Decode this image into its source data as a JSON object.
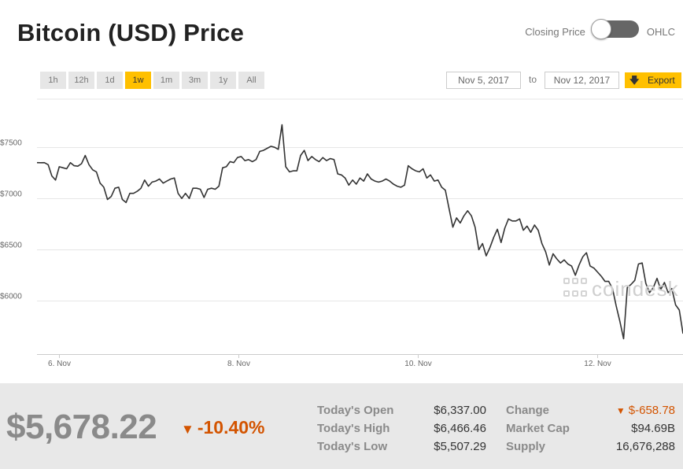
{
  "header": {
    "title": "Bitcoin (USD) Price"
  },
  "toggle": {
    "left_label": "Closing Price",
    "right_label": "OHLC"
  },
  "ranges": [
    {
      "label": "1h",
      "active": false
    },
    {
      "label": "12h",
      "active": false
    },
    {
      "label": "1d",
      "active": false
    },
    {
      "label": "1w",
      "active": true
    },
    {
      "label": "1m",
      "active": false
    },
    {
      "label": "3m",
      "active": false
    },
    {
      "label": "1y",
      "active": false
    },
    {
      "label": "All",
      "active": false
    }
  ],
  "date_range": {
    "from": "Nov 5, 2017",
    "to_label": "to",
    "to": "Nov 12, 2017"
  },
  "export": {
    "label": "Export",
    "icon": "download-arrow-icon"
  },
  "watermark": {
    "text": "coindesk"
  },
  "colors": {
    "accent": "#ffc000",
    "negative": "#d35400",
    "line": "#333333",
    "panel": "#e8e8e8"
  },
  "chart_data": {
    "type": "line",
    "x_start": "2017-11-05T18:00",
    "x_end": "2017-11-12T23:00",
    "x_tick_labels": [
      "6. Nov",
      "8. Nov",
      "10. Nov",
      "12. Nov"
    ],
    "x_tick_dates": [
      "2017-11-06",
      "2017-11-08",
      "2017-11-10",
      "2017-11-12"
    ],
    "ylim": [
      5480,
      7970
    ],
    "y_tick_labels": [
      "$6000",
      "$6500",
      "$7000",
      "$7500"
    ],
    "y_ticks": [
      6000,
      6500,
      7000,
      7500
    ],
    "grid": true,
    "values": [
      7350,
      7349,
      7350,
      7330,
      7220,
      7180,
      7310,
      7300,
      7290,
      7350,
      7320,
      7315,
      7340,
      7420,
      7330,
      7280,
      7260,
      7150,
      7110,
      6990,
      7020,
      7100,
      7110,
      6990,
      6960,
      7050,
      7050,
      7070,
      7100,
      7180,
      7120,
      7160,
      7170,
      7190,
      7150,
      7170,
      7190,
      7200,
      7050,
      7000,
      7050,
      7000,
      7100,
      7100,
      7090,
      7010,
      7090,
      7100,
      7090,
      7120,
      7300,
      7310,
      7360,
      7350,
      7400,
      7410,
      7370,
      7380,
      7360,
      7380,
      7460,
      7470,
      7490,
      7510,
      7500,
      7480,
      7720,
      7310,
      7260,
      7270,
      7270,
      7420,
      7470,
      7370,
      7410,
      7380,
      7360,
      7400,
      7370,
      7390,
      7380,
      7240,
      7230,
      7200,
      7130,
      7180,
      7140,
      7200,
      7170,
      7240,
      7190,
      7170,
      7160,
      7170,
      7190,
      7170,
      7140,
      7120,
      7110,
      7130,
      7320,
      7290,
      7270,
      7260,
      7290,
      7200,
      7230,
      7170,
      7180,
      7110,
      7080,
      6900,
      6720,
      6810,
      6760,
      6830,
      6880,
      6830,
      6720,
      6500,
      6560,
      6440,
      6520,
      6620,
      6700,
      6570,
      6710,
      6800,
      6780,
      6780,
      6800,
      6690,
      6730,
      6670,
      6740,
      6690,
      6560,
      6480,
      6350,
      6460,
      6410,
      6370,
      6400,
      6360,
      6340,
      6250,
      6350,
      6430,
      6470,
      6340,
      6320,
      6280,
      6240,
      6190,
      6190,
      6120,
      5950,
      5800,
      5630,
      6130,
      6160,
      6200,
      6360,
      6370,
      6170,
      6080,
      6130,
      6220,
      6110,
      6180,
      6080,
      6120,
      5960,
      5910,
      5680
    ]
  },
  "stats": {
    "price": "$5,678.22",
    "change_pct": "-10.40%",
    "rows": [
      {
        "label": "Today's Open",
        "value": "$6,337.00"
      },
      {
        "label": "Today's High",
        "value": "$6,466.46"
      },
      {
        "label": "Today's Low",
        "value": "$5,507.29"
      }
    ],
    "rows_right": [
      {
        "label": "Change",
        "value": "$-658.78"
      },
      {
        "label": "Market Cap",
        "value": "$94.69B"
      },
      {
        "label": "Supply",
        "value": "16,676,288"
      }
    ]
  }
}
